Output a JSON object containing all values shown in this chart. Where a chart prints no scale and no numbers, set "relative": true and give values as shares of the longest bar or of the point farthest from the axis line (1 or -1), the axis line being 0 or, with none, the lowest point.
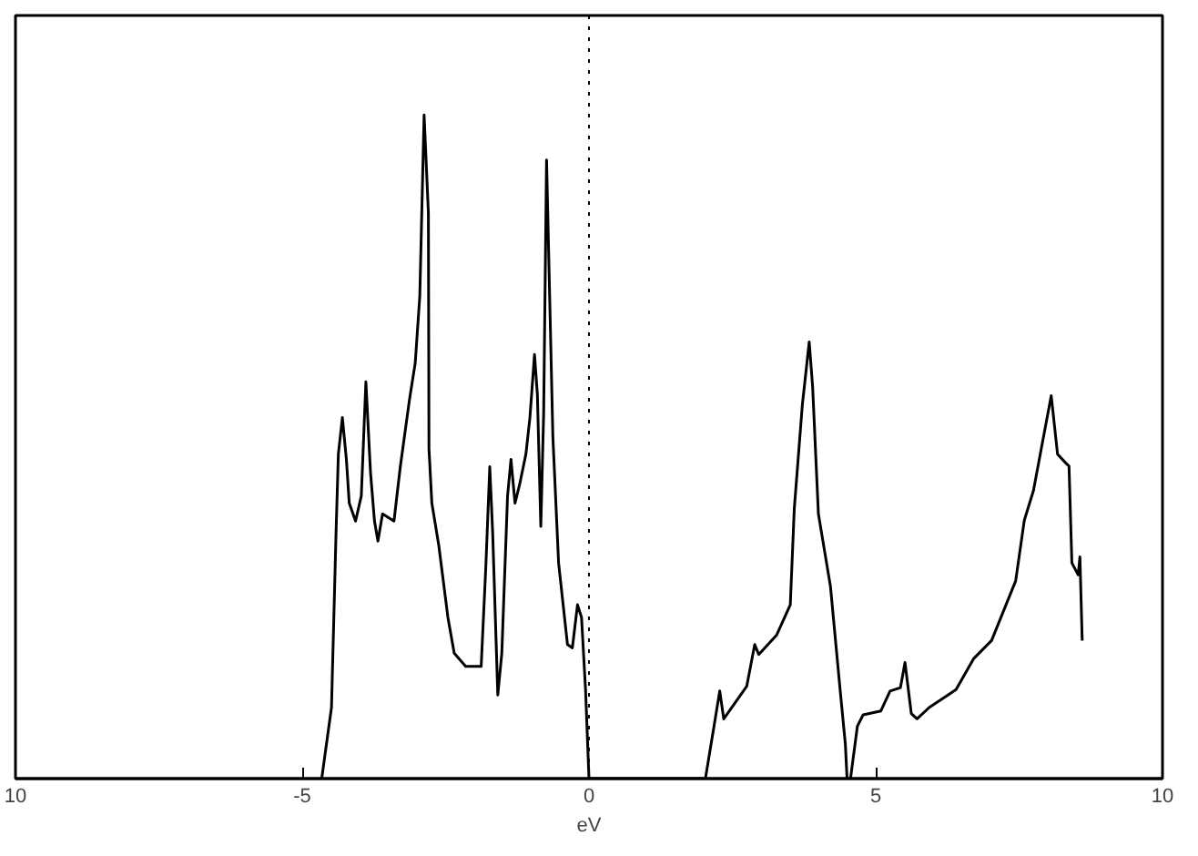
{
  "chart_data": {
    "type": "line",
    "relative": true,
    "xlabel": "eV",
    "xlim": [
      -10,
      10
    ],
    "xticks": [
      {
        "value": -10,
        "label": "10"
      },
      -5,
      0,
      5,
      10
    ],
    "grid": false,
    "marker": "none",
    "line_style": "solid",
    "series": [
      {
        "color": "#000000",
        "x": [
          -4.66,
          -4.49,
          -4.41,
          -4.37,
          -4.3,
          -4.23,
          -4.18,
          -4.07,
          -3.97,
          -3.89,
          -3.81,
          -3.74,
          -3.68,
          -3.6,
          -3.4,
          -3.29,
          -3.13,
          -3.03,
          -2.95,
          -2.875,
          -2.8,
          -2.79,
          -2.74,
          -2.62,
          -2.46,
          -2.35,
          -2.15,
          -1.88,
          -1.8,
          -1.73,
          -1.68,
          -1.59,
          -1.52,
          -1.42,
          -1.36,
          -1.29,
          -1.21,
          -1.1,
          -1.03,
          -0.95,
          -0.9,
          -0.84,
          -0.79,
          -0.74,
          -0.69,
          -0.63,
          -0.53,
          -0.375,
          -0.29,
          -0.2,
          -0.13,
          -0.06,
          0,
          2.03,
          2.18,
          2.28,
          2.35,
          2.75,
          2.89,
          2.96,
          3.27,
          3.51,
          3.58,
          3.72,
          3.84,
          3.9,
          4.0,
          4.21,
          4.37,
          4.47,
          4.5,
          4.56,
          4.68,
          4.78,
          5.09,
          5.25,
          5.43,
          5.51,
          5.62,
          5.72,
          5.93,
          6.4,
          6.71,
          7.02,
          7.44,
          7.59,
          7.75,
          7.91,
          8.06,
          8.17,
          8.32,
          8.37,
          8.42,
          8.53,
          8.56,
          8.6
        ],
        "values": [
          0,
          0.107,
          0.372,
          0.489,
          0.544,
          0.481,
          0.415,
          0.388,
          0.426,
          0.598,
          0.462,
          0.388,
          0.358,
          0.399,
          0.388,
          0.47,
          0.571,
          0.626,
          0.727,
          1.0,
          0.852,
          0.497,
          0.415,
          0.352,
          0.243,
          0.189,
          0.169,
          0.169,
          0.317,
          0.47,
          0.372,
          0.126,
          0.189,
          0.426,
          0.481,
          0.415,
          0.443,
          0.489,
          0.544,
          0.639,
          0.579,
          0.38,
          0.552,
          0.932,
          0.743,
          0.516,
          0.325,
          0.202,
          0.197,
          0.262,
          0.243,
          0.134,
          0,
          0,
          0.079,
          0.132,
          0.09,
          0.139,
          0.202,
          0.187,
          0.216,
          0.262,
          0.407,
          0.563,
          0.658,
          0.59,
          0.399,
          0.29,
          0.142,
          0.052,
          0,
          0,
          0.079,
          0.096,
          0.102,
          0.132,
          0.137,
          0.175,
          0.098,
          0.09,
          0.107,
          0.134,
          0.181,
          0.208,
          0.298,
          0.389,
          0.434,
          0.508,
          0.577,
          0.489,
          0.475,
          0.471,
          0.325,
          0.307,
          0.334,
          0.208
        ]
      }
    ],
    "ref_lines": [
      {
        "axis": "x",
        "value": 0,
        "color": "#000000",
        "line_style": "dotted"
      }
    ]
  }
}
